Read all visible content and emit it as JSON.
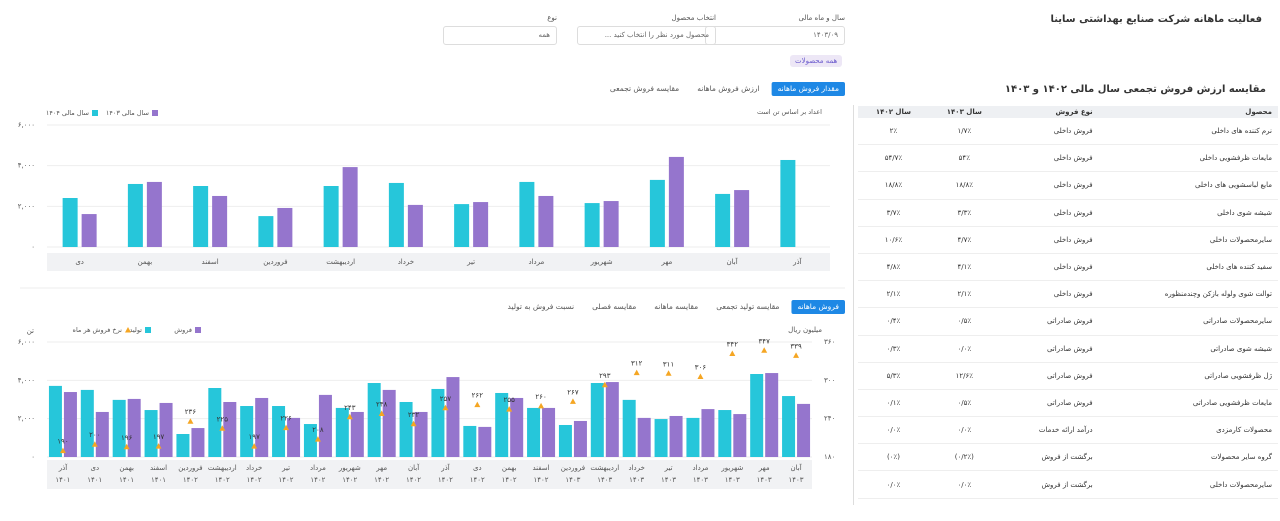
{
  "header": {
    "title": "فعالیت ماهانه شرکت صنایع بهداشتی ساینا",
    "filters": [
      {
        "label": "سال و ماه مالی",
        "value": "۱۴۰۳/۰۹"
      },
      {
        "label": "انتخاب محصول",
        "value": "محصول مورد نظر را انتخاب کنید ..."
      },
      {
        "label": "نوع",
        "value": "همه"
      }
    ],
    "chip": "همه محصولات"
  },
  "sales_table": {
    "title": "مقایسه ارزش فروش تجمعی سال مالی ۱۴۰۲ و ۱۴۰۳",
    "columns": [
      "محصول",
      "نوع فروش",
      "سال ۱۴۰۳",
      "سال ۱۴۰۲"
    ],
    "rows": [
      [
        "نرم کننده های داخلی",
        "فروش داخلی",
        "۱/۷٪",
        "۲٪"
      ],
      [
        "مایعات ظرفشویی داخلی",
        "فروش داخلی",
        "۵۴٪",
        "۵۴/۷٪"
      ],
      [
        "مایع لباسشویی های داخلی",
        "فروش داخلی",
        "۱۸/۸٪",
        "۱۸/۸٪"
      ],
      [
        "شیشه شوی داخلی",
        "فروش داخلی",
        "۳/۳٪",
        "۳/۷٪"
      ],
      [
        "سایرمحصولات داخلی",
        "فروش داخلی",
        "۴/۷٪",
        "۱۰/۶٪"
      ],
      [
        "سفید کننده های داخلی",
        "فروش داخلی",
        "۴/۱٪",
        "۴/۸٪"
      ],
      [
        "توالت شوی ولوله بازکن وچندمنظوره",
        "فروش داخلی",
        "۲/۱٪",
        "۲/۱٪"
      ],
      [
        "سایرمحصولات صادراتی",
        "فروش صادراتی",
        "۰/۵٪",
        "۰/۴٪"
      ],
      [
        "شیشه شوی صادراتی",
        "فروش صادراتی",
        "۰/۰٪",
        "۰/۳٪"
      ],
      [
        "ژل ظرفشویی صادراتی",
        "فروش صادراتی",
        "۱۲/۶٪",
        "۵/۳٪"
      ],
      [
        "مایعات ظرفشویی صادراتی",
        "فروش صادراتی",
        "۰/۵٪",
        "۰/۱٪"
      ],
      [
        "محصولات کارمزدی",
        "درآمد ارائه خدمات",
        "۰/۰٪",
        "۰/۰٪"
      ],
      [
        "گروه سایر محصولات",
        "برگشت از فروش",
        "(۰/۲٪)",
        "(۰٪)"
      ],
      [
        "سایرمحصولات داخلی",
        "برگشت از فروش",
        "۰/۰٪",
        "۰/۰٪"
      ]
    ]
  },
  "chart_data": [
    {
      "type": "bar",
      "tabs": [
        "مقدار فروش ماهانه",
        "ارزش فروش ماهانه",
        "مقایسه فروش تجمعی"
      ],
      "note": "اعداد بر اساس تن است",
      "categories": [
        "دی",
        "بهمن",
        "اسفند",
        "فروردین",
        "اردیبهشت",
        "خرداد",
        "تیر",
        "مرداد",
        "شهریور",
        "مهر",
        "آبان",
        "آذر"
      ],
      "series": [
        {
          "name": "سال مالی ۱۴۰۴",
          "color": "#26c6da",
          "values": [
            2410,
            3100,
            3000,
            1520,
            3000,
            3150,
            2110,
            3200,
            2160,
            3300,
            2610,
            4280
          ]
        },
        {
          "name": "سال مالی ۱۴۰۳",
          "color": "#9575cd",
          "values": [
            1620,
            3200,
            2510,
            1920,
            3930,
            2070,
            2210,
            2510,
            2260,
            4430,
            2800,
            null
          ]
        }
      ],
      "ylim": [
        0,
        6000
      ],
      "yticks": [
        {
          "value": 0,
          "label": "۰"
        },
        {
          "value": 2000,
          "label": "۲,۰۰۰"
        },
        {
          "value": 4000,
          "label": "۴,۰۰۰"
        },
        {
          "value": 6000,
          "label": "۶,۰۰۰"
        }
      ],
      "grid": true
    },
    {
      "type": "bar",
      "tabs": [
        "فروش ماهانه",
        "مقایسه تولید تجمعی",
        "مقایسه ماهانه",
        "مقایسه فصلی",
        "نسبت فروش به تولید"
      ],
      "ylabel": "تن",
      "y2label": "میلیون ریال",
      "categories": [
        "آذر",
        "دی",
        "بهمن",
        "اسفند",
        "فروردین",
        "اردیبهشت",
        "خرداد",
        "تیر",
        "مرداد",
        "شهریور",
        "مهر",
        "آبان",
        "آذر",
        "دی",
        "بهمن",
        "اسفند",
        "فروردین",
        "اردیبهشت",
        "خرداد",
        "تیر",
        "مرداد",
        "شهریور",
        "مهر",
        "آبان"
      ],
      "category_years": [
        "۱۴۰۱",
        "۱۴۰۱",
        "۱۴۰۱",
        "۱۴۰۱",
        "۱۴۰۲",
        "۱۴۰۲",
        "۱۴۰۲",
        "۱۴۰۲",
        "۱۴۰۲",
        "۱۴۰۲",
        "۱۴۰۲",
        "۱۴۰۲",
        "۱۴۰۲",
        "۱۴۰۲",
        "۱۴۰۲",
        "۱۴۰۲",
        "۱۴۰۳",
        "۱۴۰۳",
        "۱۴۰۳",
        "۱۴۰۳",
        "۱۴۰۳",
        "۱۴۰۳",
        "۱۴۰۳",
        "۱۴۰۳"
      ],
      "series": [
        {
          "name": "تولید",
          "color": "#26c6da",
          "values": [
            3710,
            3500,
            2980,
            2450,
            1200,
            3600,
            2660,
            2660,
            1720,
            2560,
            3860,
            2870,
            3550,
            1620,
            3340,
            2560,
            1670,
            3860,
            2980,
            1980,
            2040,
            2450,
            4330,
            3180
          ]
        },
        {
          "name": "فروش",
          "color": "#9575cd",
          "values": [
            3390,
            2350,
            3030,
            2820,
            1510,
            2870,
            3080,
            2040,
            3240,
            2350,
            3500,
            2350,
            4170,
            1570,
            3080,
            2560,
            1880,
            3910,
            2040,
            2140,
            2500,
            2240,
            4380,
            2770
          ]
        },
        {
          "name": "نرخ فروش هر ماه",
          "color": "#f5a623",
          "axis": "y2",
          "values": [
            190,
            200,
            196,
            197,
            236,
            225,
            197,
            226,
            208,
            243,
            248,
            232,
            257,
            262,
            255,
            260,
            267,
            293,
            312,
            311,
            306,
            342,
            347,
            339
          ],
          "value_labels": [
            "۱۹۰",
            "۲۰۰",
            "۱۹۶",
            "۱۹۷",
            "۲۳۶",
            "۲۲۵",
            "۱۹۷",
            "۲۲۶",
            "۲۰۸",
            "۲۴۳",
            "۲۴۸",
            "۲۳۲",
            "۲۵۷",
            "۲۶۲",
            "۲۵۵",
            "۲۶۰",
            "۲۶۷",
            "۲۹۳",
            "۳۱۲",
            "۳۱۱",
            "۳۰۶",
            "۳۴۲",
            "۳۴۷",
            "۳۳۹"
          ]
        }
      ],
      "ylim": [
        0,
        6000
      ],
      "yticks": [
        {
          "value": 0,
          "label": "۰"
        },
        {
          "value": 2000,
          "label": "۲,۰۰۰"
        },
        {
          "value": 4000,
          "label": "۴,۰۰۰"
        },
        {
          "value": 6000,
          "label": "۶,۰۰۰"
        }
      ],
      "y2lim": [
        180,
        360
      ],
      "y2ticks": [
        {
          "value": 180,
          "label": "۱۸۰"
        },
        {
          "value": 240,
          "label": "۲۴۰"
        },
        {
          "value": 300,
          "label": "۳۰۰"
        },
        {
          "value": 360,
          "label": "۳۶۰"
        }
      ],
      "grid": true
    }
  ]
}
